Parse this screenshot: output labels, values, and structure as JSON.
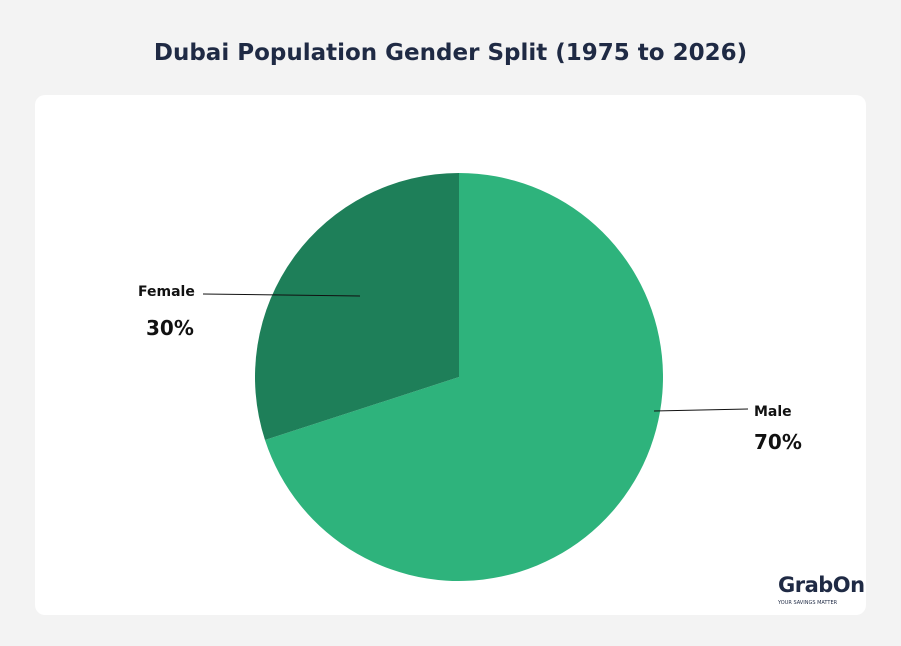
{
  "chart_data": {
    "type": "pie",
    "title": "Dubai Population Gender Split (1975 to 2026)",
    "slices": [
      {
        "label": "Male",
        "value": 70,
        "display": "70%",
        "color": "#2eb37c"
      },
      {
        "label": "Female",
        "value": 30,
        "display": "30%",
        "color": "#1e7f59"
      }
    ],
    "legend": "none",
    "start_angle": "12 o'clock, male clockwise"
  },
  "branding": {
    "logo_text": "GrabOn",
    "tagline": "YOUR SAVINGS MATTER"
  }
}
